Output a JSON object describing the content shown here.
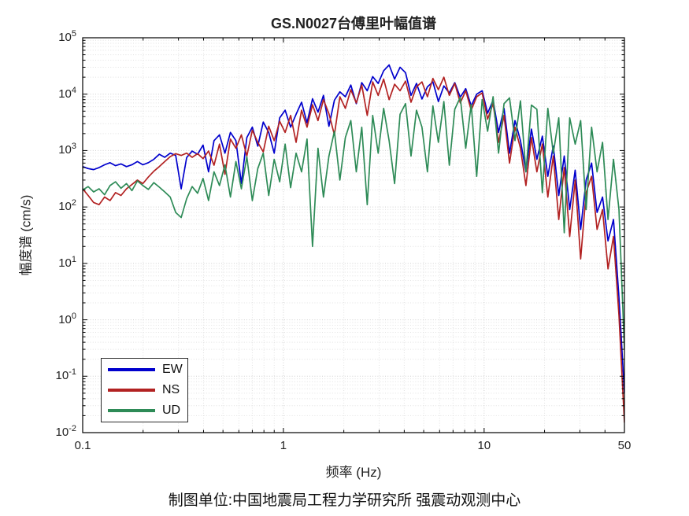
{
  "chart_data": {
    "type": "line",
    "title": "GS.N0027台傅里叶幅值谱",
    "xlabel": "频率 (Hz)",
    "ylabel": "幅度谱 (cm/s)",
    "footer": "制图单位:中国地震局工程力学研究所 强震动观测中心",
    "x_scale": "log",
    "y_scale": "log",
    "xlim": [
      0.1,
      50
    ],
    "ylim": [
      0.01,
      100000
    ],
    "x_ticks": {
      "values": [
        0.1,
        1,
        10,
        50
      ],
      "labels": [
        "0.1",
        "1",
        "10",
        "50"
      ]
    },
    "y_tick_exponents": [
      5,
      4,
      3,
      2,
      1,
      0,
      -1,
      -2
    ],
    "grid": "major and minor dotted, both axes, log decades",
    "legend": {
      "position": "southwest",
      "entries": [
        "EW",
        "NS",
        "UD"
      ]
    },
    "x_sampling": {
      "mode": "log-spaced",
      "min": 0.1,
      "max": 50,
      "n": 100
    },
    "series": [
      {
        "name": "EW",
        "color": "#0000CD",
        "values": [
          520,
          480,
          460,
          500,
          560,
          610,
          540,
          580,
          520,
          560,
          640,
          560,
          610,
          700,
          860,
          760,
          900,
          820,
          210,
          750,
          980,
          860,
          1250,
          420,
          1500,
          1900,
          900,
          2100,
          1500,
          260,
          1700,
          2600,
          1200,
          3200,
          2100,
          900,
          3800,
          5200,
          2600,
          4400,
          7200,
          3100,
          8300,
          4800,
          9500,
          2700,
          7800,
          11000,
          9000,
          14500,
          6800,
          16000,
          11500,
          20500,
          15500,
          26000,
          33000,
          18500,
          30000,
          24000,
          9500,
          15500,
          8200,
          13500,
          16500,
          7400,
          14000,
          10500,
          16000,
          8800,
          12500,
          6200,
          10000,
          11500,
          4600,
          7800,
          2100,
          5600,
          900,
          3400,
          1500,
          420,
          2400,
          700,
          1800,
          350,
          1200,
          160,
          800,
          90,
          450,
          40,
          300,
          600,
          80,
          150,
          25,
          60,
          2.5,
          0.05
        ]
      },
      {
        "name": "NS",
        "color": "#B22222",
        "values": [
          210,
          160,
          120,
          110,
          150,
          130,
          180,
          160,
          210,
          250,
          300,
          260,
          340,
          430,
          520,
          640,
          780,
          880,
          820,
          900,
          760,
          880,
          720,
          980,
          550,
          1300,
          380,
          1600,
          1100,
          1900,
          800,
          2300,
          1400,
          950,
          2700,
          1500,
          3300,
          2100,
          4200,
          1400,
          5200,
          2600,
          6500,
          3400,
          8000,
          4500,
          1900,
          9000,
          5600,
          12000,
          7000,
          14500,
          4200,
          16500,
          9500,
          18500,
          8000,
          15000,
          11500,
          17000,
          7200,
          13500,
          16500,
          9000,
          19000,
          12000,
          20000,
          9500,
          15500,
          7000,
          11500,
          5200,
          9000,
          10500,
          3600,
          6800,
          1400,
          4200,
          600,
          2600,
          1100,
          240,
          1700,
          420,
          1300,
          150,
          800,
          60,
          500,
          30,
          300,
          12,
          180,
          350,
          40,
          90,
          8,
          30,
          1.2,
          0.015
        ]
      },
      {
        "name": "UD",
        "color": "#2E8B57",
        "values": [
          200,
          230,
          185,
          210,
          165,
          240,
          280,
          215,
          260,
          195,
          290,
          240,
          205,
          270,
          225,
          185,
          150,
          80,
          65,
          140,
          230,
          175,
          320,
          130,
          420,
          240,
          560,
          150,
          640,
          210,
          780,
          130,
          480,
          900,
          160,
          700,
          280,
          1300,
          220,
          900,
          420,
          1600,
          20,
          1100,
          150,
          800,
          2200,
          300,
          1700,
          3400,
          420,
          2600,
          110,
          4200,
          900,
          5600,
          1500,
          260,
          4400,
          6800,
          800,
          5200,
          2600,
          420,
          6200,
          1400,
          7400,
          550,
          5400,
          8800,
          1100,
          6600,
          350,
          8000,
          2200,
          9000,
          900,
          6800,
          8600,
          1500,
          7600,
          420,
          6400,
          5400,
          180,
          5600,
          900,
          3800,
          35,
          3800,
          1300,
          3400,
          90,
          2600,
          420,
          1400,
          60,
          700,
          90,
          0.3
        ]
      }
    ]
  }
}
